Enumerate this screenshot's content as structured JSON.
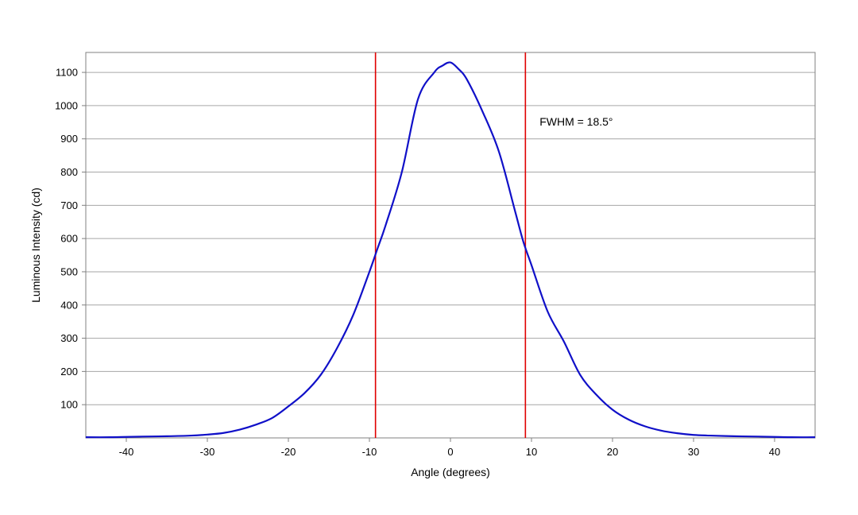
{
  "chart_data": {
    "type": "line",
    "title": "",
    "xlabel": "Angle (degrees)",
    "ylabel": "Luminous Intensity (cd)",
    "xlim": [
      -45,
      45
    ],
    "ylim": [
      0,
      1160
    ],
    "x_ticks": [
      -40,
      -30,
      -20,
      -10,
      0,
      10,
      20,
      30,
      40
    ],
    "x_tick_labels": [
      "-40",
      "-30",
      "-20",
      "-10",
      "0",
      "10",
      "20",
      "30",
      "40"
    ],
    "y_ticks": [
      100,
      200,
      300,
      400,
      500,
      600,
      700,
      800,
      900,
      1000,
      1100
    ],
    "y_tick_labels": [
      "100",
      "200",
      "300",
      "400",
      "500",
      "600",
      "700",
      "800",
      "900",
      "1000",
      "1100"
    ],
    "grid": "horizontal",
    "legend": "none",
    "series": [
      {
        "color": "#1010c8",
        "x": [
          -45,
          -42,
          -40,
          -38,
          -35,
          -32,
          -30,
          -28,
          -26,
          -24,
          -22,
          -20,
          -18,
          -16,
          -14,
          -12,
          -10,
          -9,
          -8,
          -6,
          -4,
          -2,
          -1,
          0,
          1,
          2,
          4,
          6,
          8,
          9,
          10,
          12,
          14,
          16,
          18,
          20,
          22,
          24,
          26,
          28,
          30,
          32,
          35,
          38,
          40,
          42,
          45
        ],
        "y": [
          2,
          2,
          3,
          4,
          5,
          7,
          10,
          15,
          25,
          40,
          60,
          95,
          135,
          190,
          270,
          370,
          500,
          570,
          640,
          800,
          1020,
          1100,
          1120,
          1130,
          1110,
          1080,
          980,
          860,
          680,
          590,
          520,
          380,
          290,
          190,
          130,
          85,
          55,
          35,
          22,
          14,
          9,
          7,
          5,
          4,
          3,
          2,
          2
        ]
      }
    ],
    "vlines": [
      {
        "x": -9.25,
        "color": "#e00000"
      },
      {
        "x": 9.25,
        "color": "#e00000"
      }
    ],
    "annotations": [
      {
        "text": "FWHM = 18.5°",
        "x": 11,
        "y": 940
      }
    ],
    "colors": {
      "series": "#1010c8",
      "vline": "#e00000",
      "grid": "#a6a6a6",
      "frame": "#808080"
    }
  }
}
